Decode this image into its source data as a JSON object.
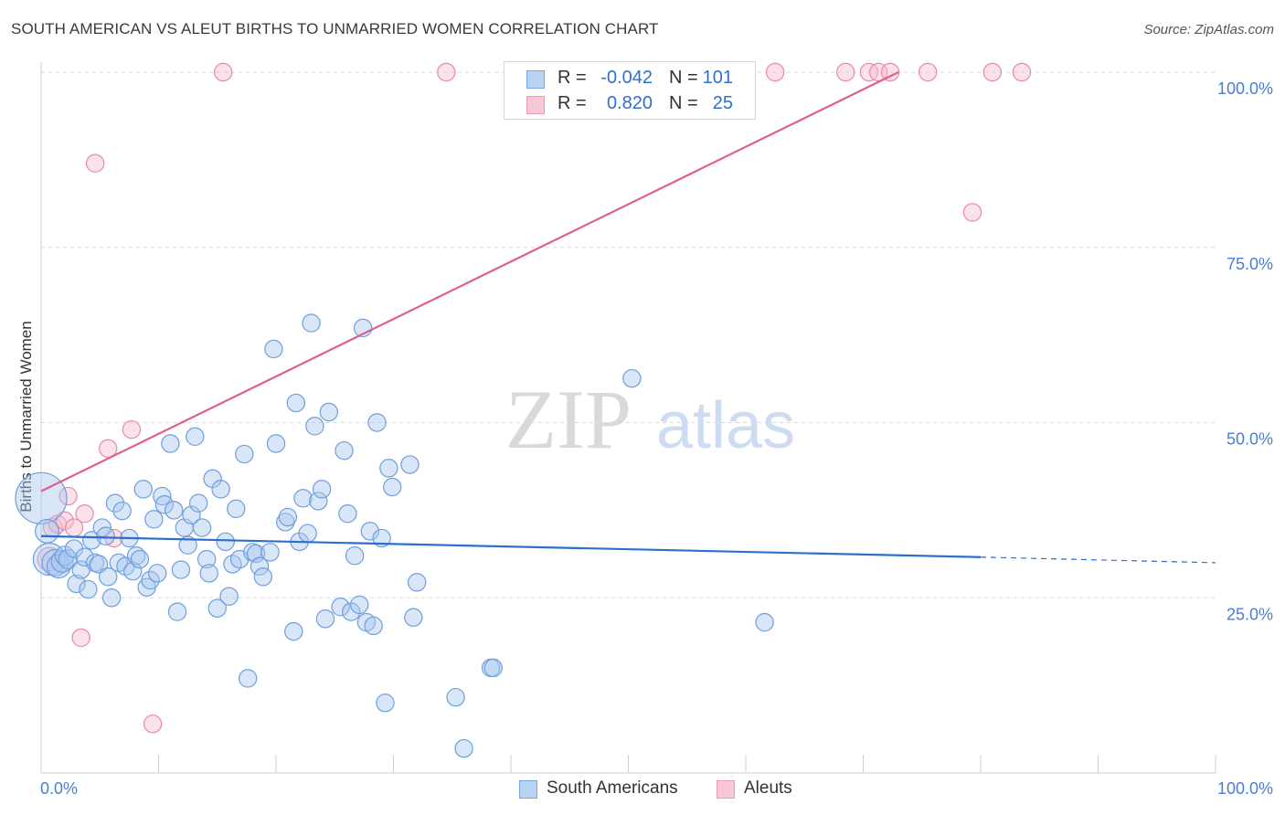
{
  "title": "SOUTH AMERICAN VS ALEUT BIRTHS TO UNMARRIED WOMEN CORRELATION CHART",
  "source": "Source: ZipAtlas.com",
  "watermark": {
    "zip": "ZIP",
    "atlas": "atlas"
  },
  "legend": {
    "rows": [
      {
        "r_label": "R =",
        "r_value": "-0.042",
        "n_label": "N =",
        "n_value": "101"
      },
      {
        "r_label": "R =",
        "r_value": "0.820",
        "n_label": "N =",
        "n_value": "25"
      }
    ]
  },
  "bottom_legend": {
    "south": "South Americans",
    "aleut": "Aleuts"
  },
  "colors": {
    "blue_fill": "#a9c8f0",
    "blue_stroke": "#6f9fdc",
    "blue_line": "#2c6fcf",
    "pink_fill": "#f6bccd",
    "pink_stroke": "#e98aa8",
    "pink_line": "#e0608c",
    "grid": "#d8d8d8",
    "tick_text": "#4a7fd0"
  },
  "chart_data": {
    "type": "scatter",
    "title": "SOUTH AMERICAN VS ALEUT BIRTHS TO UNMARRIED WOMEN CORRELATION CHART",
    "xlabel": "",
    "ylabel": "Births to Unmarried Women",
    "xlim": [
      0,
      100
    ],
    "ylim": [
      0,
      100
    ],
    "x_tick_labels": [
      "0.0%",
      "100.0%"
    ],
    "y_tick_labels": [
      "25.0%",
      "50.0%",
      "75.0%",
      "100.0%"
    ],
    "y_ticks": [
      25,
      50,
      75,
      100
    ],
    "grid": true,
    "legend_position": "top-center",
    "series": [
      {
        "name": "South Americans",
        "r": -0.042,
        "n": 101,
        "trend": {
          "x0": 0,
          "y0": 33.8,
          "x1": 80,
          "y1": 30.8,
          "dashed_to": 100,
          "dashed_y": 30.0
        },
        "points": [
          [
            0,
            39.2,
            3.5
          ],
          [
            0.5,
            34.5,
            1.6
          ],
          [
            0.7,
            30.5,
            2.2
          ],
          [
            1.2,
            30.0,
            1.8
          ],
          [
            1.5,
            29.5,
            1.6
          ],
          [
            1.8,
            30.2,
            1.5
          ],
          [
            2.0,
            31.0,
            1.3
          ],
          [
            2.3,
            30.5,
            1.3
          ],
          [
            2.8,
            32.0,
            1.2
          ],
          [
            3.0,
            27.0,
            1.2
          ],
          [
            3.4,
            29.0,
            1.2
          ],
          [
            3.7,
            30.8,
            1.2
          ],
          [
            4.0,
            26.2,
            1.2
          ],
          [
            4.3,
            33.2,
            1.2
          ],
          [
            4.6,
            30.0,
            1.2
          ],
          [
            4.9,
            29.8,
            1.2
          ],
          [
            5.2,
            35.0,
            1.2
          ],
          [
            5.5,
            33.8,
            1.2
          ],
          [
            5.7,
            28.0,
            1.2
          ],
          [
            6.0,
            25.0,
            1.2
          ],
          [
            6.3,
            38.5,
            1.2
          ],
          [
            6.6,
            30.0,
            1.2
          ],
          [
            6.9,
            37.4,
            1.2
          ],
          [
            7.2,
            29.5,
            1.2
          ],
          [
            7.5,
            33.5,
            1.2
          ],
          [
            7.8,
            28.8,
            1.2
          ],
          [
            8.1,
            31.0,
            1.2
          ],
          [
            8.4,
            30.5,
            1.2
          ],
          [
            8.7,
            40.5,
            1.2
          ],
          [
            9.0,
            26.5,
            1.2
          ],
          [
            9.3,
            27.5,
            1.2
          ],
          [
            9.6,
            36.2,
            1.2
          ],
          [
            9.9,
            28.5,
            1.2
          ],
          [
            10.3,
            39.5,
            1.2
          ],
          [
            10.5,
            38.3,
            1.2
          ],
          [
            11.0,
            47.0,
            1.2
          ],
          [
            11.3,
            37.5,
            1.2
          ],
          [
            11.6,
            23.0,
            1.2
          ],
          [
            11.9,
            29.0,
            1.2
          ],
          [
            12.2,
            35.0,
            1.2
          ],
          [
            12.5,
            32.5,
            1.2
          ],
          [
            12.8,
            36.8,
            1.2
          ],
          [
            13.1,
            48.0,
            1.2
          ],
          [
            13.4,
            38.5,
            1.2
          ],
          [
            13.7,
            35.0,
            1.2
          ],
          [
            14.1,
            30.5,
            1.2
          ],
          [
            14.3,
            28.5,
            1.2
          ],
          [
            14.6,
            42.0,
            1.2
          ],
          [
            15.0,
            23.5,
            1.2
          ],
          [
            15.3,
            40.5,
            1.2
          ],
          [
            15.7,
            33.0,
            1.2
          ],
          [
            16.0,
            25.2,
            1.2
          ],
          [
            16.3,
            29.8,
            1.2
          ],
          [
            16.6,
            37.7,
            1.2
          ],
          [
            16.9,
            30.5,
            1.2
          ],
          [
            17.3,
            45.5,
            1.2
          ],
          [
            17.6,
            13.5,
            1.2
          ],
          [
            18.0,
            31.5,
            1.2
          ],
          [
            18.3,
            31.3,
            1.2
          ],
          [
            18.6,
            29.5,
            1.2
          ],
          [
            18.9,
            28.0,
            1.2
          ],
          [
            19.5,
            31.5,
            1.2
          ],
          [
            19.8,
            60.5,
            1.2
          ],
          [
            20.0,
            47.0,
            1.2
          ],
          [
            20.8,
            35.8,
            1.2
          ],
          [
            21.0,
            36.5,
            1.2
          ],
          [
            21.5,
            20.2,
            1.2
          ],
          [
            21.7,
            52.8,
            1.2
          ],
          [
            22.0,
            33.0,
            1.2
          ],
          [
            22.3,
            39.2,
            1.2
          ],
          [
            22.7,
            34.2,
            1.2
          ],
          [
            23.0,
            64.2,
            1.2
          ],
          [
            23.3,
            49.5,
            1.2
          ],
          [
            23.6,
            38.8,
            1.2
          ],
          [
            23.9,
            40.5,
            1.2
          ],
          [
            24.2,
            22.0,
            1.2
          ],
          [
            24.5,
            51.5,
            1.2
          ],
          [
            25.5,
            23.7,
            1.2
          ],
          [
            25.8,
            46.0,
            1.2
          ],
          [
            26.1,
            37.0,
            1.2
          ],
          [
            26.4,
            23.0,
            1.2
          ],
          [
            26.7,
            31.0,
            1.2
          ],
          [
            27.1,
            24.0,
            1.2
          ],
          [
            27.4,
            63.5,
            1.2
          ],
          [
            27.7,
            21.5,
            1.2
          ],
          [
            28.0,
            34.5,
            1.2
          ],
          [
            28.3,
            21.0,
            1.2
          ],
          [
            28.6,
            50.0,
            1.2
          ],
          [
            29.0,
            33.5,
            1.2
          ],
          [
            29.3,
            10.0,
            1.2
          ],
          [
            29.6,
            43.5,
            1.2
          ],
          [
            29.9,
            40.8,
            1.2
          ],
          [
            31.4,
            44.0,
            1.2
          ],
          [
            31.7,
            22.2,
            1.2
          ],
          [
            32.0,
            27.2,
            1.2
          ],
          [
            35.3,
            10.8,
            1.2
          ],
          [
            36.0,
            3.5,
            1.2
          ],
          [
            38.3,
            15.0,
            1.2
          ],
          [
            38.5,
            15.0,
            1.2
          ],
          [
            50.3,
            56.3,
            1.2
          ],
          [
            61.6,
            21.5,
            1.2
          ]
        ]
      },
      {
        "name": "Aleuts",
        "r": 0.82,
        "n": 25,
        "trend": {
          "x0": 0,
          "y0": 40.2,
          "x1": 73,
          "y1": 100
        },
        "points": [
          [
            0.7,
            30.5,
            1.6
          ],
          [
            1.0,
            35.0,
            1.3
          ],
          [
            1.4,
            35.5,
            1.2
          ],
          [
            2.0,
            36.0,
            1.2
          ],
          [
            2.3,
            39.5,
            1.2
          ],
          [
            2.8,
            35.0,
            1.2
          ],
          [
            3.4,
            19.3,
            1.2
          ],
          [
            3.7,
            37.0,
            1.2
          ],
          [
            4.6,
            87.0,
            1.2
          ],
          [
            5.7,
            46.3,
            1.2
          ],
          [
            6.2,
            33.5,
            1.2
          ],
          [
            7.7,
            49.0,
            1.2
          ],
          [
            9.5,
            7.0,
            1.2
          ],
          [
            15.5,
            100,
            1.2
          ],
          [
            34.5,
            100,
            1.2
          ],
          [
            53.0,
            100,
            1.2
          ],
          [
            62.5,
            100,
            1.2
          ],
          [
            68.5,
            100,
            1.2
          ],
          [
            70.5,
            100,
            1.2
          ],
          [
            71.3,
            100,
            1.2
          ],
          [
            72.3,
            100,
            1.2
          ],
          [
            75.5,
            100,
            1.2
          ],
          [
            81.0,
            100,
            1.2
          ],
          [
            83.5,
            100,
            1.2
          ],
          [
            79.3,
            80.0,
            1.2
          ]
        ]
      }
    ]
  }
}
